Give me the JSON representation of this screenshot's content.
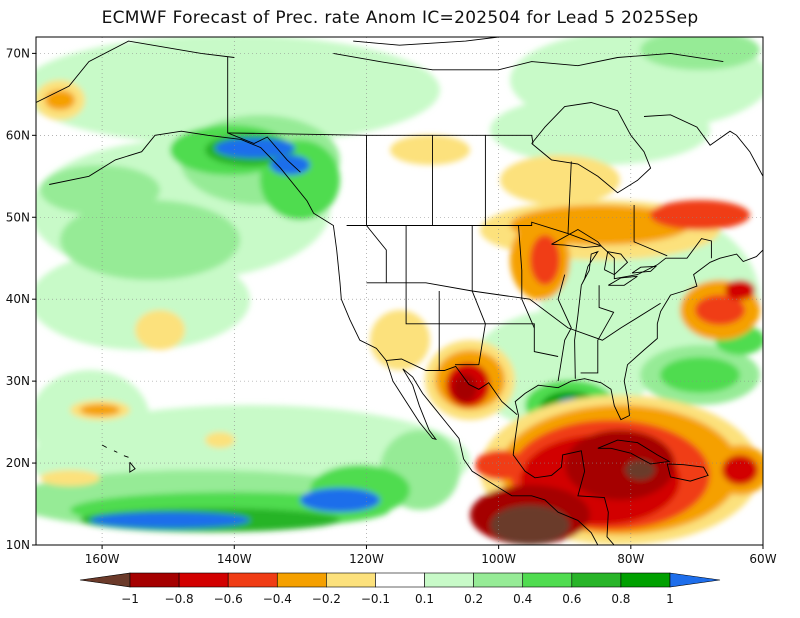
{
  "title": "ECMWF Forecast of Prec. rate Anom IC=202504 for Lead 5 2025Sep",
  "map": {
    "lon_range": [
      -170,
      -60
    ],
    "lat_range": [
      10,
      72
    ],
    "lat_ticks": [
      {
        "value": 70,
        "label": "70N"
      },
      {
        "value": 60,
        "label": "60N"
      },
      {
        "value": 50,
        "label": "50N"
      },
      {
        "value": 40,
        "label": "40N"
      },
      {
        "value": 30,
        "label": "30N"
      },
      {
        "value": 20,
        "label": "20N"
      },
      {
        "value": 10,
        "label": "10N"
      }
    ],
    "lon_ticks": [
      {
        "value": -160,
        "label": "160W"
      },
      {
        "value": -140,
        "label": "140W"
      },
      {
        "value": -120,
        "label": "120W"
      },
      {
        "value": -100,
        "label": "100W"
      },
      {
        "value": -80,
        "label": "80W"
      },
      {
        "value": -60,
        "label": "60W"
      }
    ],
    "grid": true
  },
  "colorbar": {
    "boundaries": [
      "−1",
      "−0.8",
      "−0.6",
      "−0.4",
      "−0.2",
      "−0.1",
      "0.1",
      "0.2",
      "0.4",
      "0.6",
      "0.8",
      "1"
    ],
    "colors": [
      "#6b3a2a",
      "#a50000",
      "#d20000",
      "#f03c14",
      "#f5a000",
      "#fce17c",
      "#ffffff",
      "#c8fac8",
      "#96eb96",
      "#50dc50",
      "#28b428",
      "#00a000",
      "#1e6eeb"
    ]
  },
  "palette": {
    "brown": "#6b3a2a",
    "darkred": "#a50000",
    "red": "#d20000",
    "orangered": "#f03c14",
    "orange": "#f5a000",
    "yellow": "#fce17c",
    "lightgreen": "#c8fac8",
    "green1": "#96eb96",
    "green2": "#50dc50",
    "green3": "#28b428",
    "darkgreen": "#00a000",
    "blue": "#1e6eeb"
  }
}
